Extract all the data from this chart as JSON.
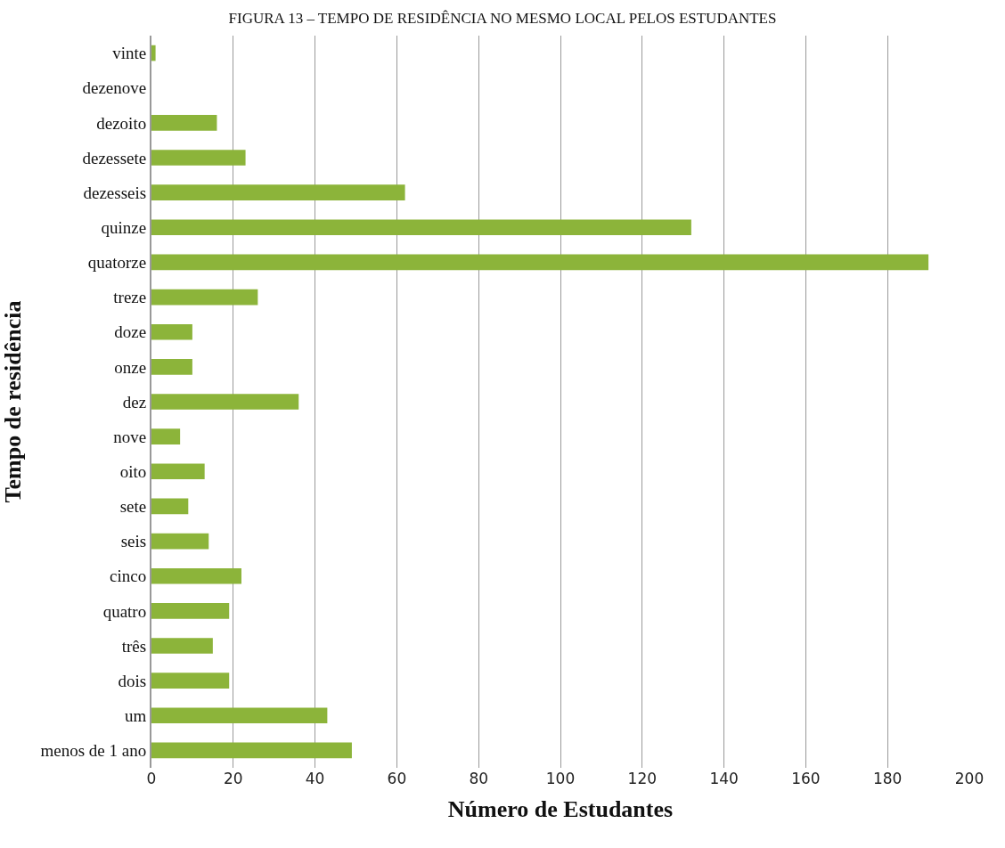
{
  "chart_data": {
    "type": "bar",
    "orientation": "horizontal",
    "title": "FIGURA 13 – TEMPO DE RESIDÊNCIA NO MESMO LOCAL PELOS ESTUDANTES",
    "xlabel": "Número de Estudantes",
    "ylabel": "Tempo de residência",
    "categories": [
      "vinte",
      "dezenove",
      "dezoito",
      "dezessete",
      "dezesseis",
      "quinze",
      "quatorze",
      "treze",
      "doze",
      "onze",
      "dez",
      "nove",
      "oito",
      "sete",
      "seis",
      "cinco",
      "quatro",
      "três",
      "dois",
      "um",
      "menos de 1 ano"
    ],
    "values": [
      1,
      0,
      16,
      23,
      62,
      132,
      190,
      26,
      10,
      10,
      36,
      7,
      13,
      9,
      14,
      22,
      19,
      15,
      19,
      43,
      49
    ],
    "color": "#8cb43a",
    "xlim": [
      0,
      200
    ],
    "xticks": [
      0,
      20,
      40,
      60,
      80,
      100,
      120,
      140,
      160,
      180,
      200
    ],
    "grid": "x"
  }
}
